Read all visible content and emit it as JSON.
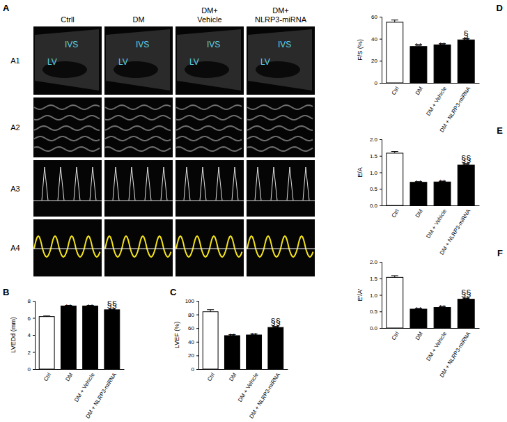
{
  "panel_a": {
    "label": "A",
    "columns": [
      [
        "Ctrll"
      ],
      [
        "DM"
      ],
      [
        "DM+",
        "Vehicle"
      ],
      [
        "DM+",
        "NLRP3-miRNA"
      ]
    ],
    "rows": [
      "A1",
      "A2",
      "A3",
      "A4"
    ],
    "structures": [
      "IVS",
      "LV"
    ]
  },
  "chart_data": [
    {
      "type": "bar",
      "panel": "B",
      "y_label": "LVEDd (mm)",
      "categories": [
        "Ctrl",
        "DM",
        "DM + Vehicle",
        "DM + NLRP3-miRNA"
      ],
      "values": [
        6.15,
        7.4,
        7.4,
        6.95
      ],
      "errors": [
        0.08,
        0.06,
        0.06,
        0.06
      ],
      "colors": [
        "#ffffff",
        "#000000",
        "#000000",
        "#000000"
      ],
      "ylim": [
        0,
        8
      ],
      "yticks": [
        0,
        2,
        4,
        6,
        8
      ],
      "annotations": [
        {
          "index": 1,
          "text": "**"
        },
        {
          "index": 2,
          "text": "**"
        },
        {
          "index": 3,
          "text": "**"
        },
        {
          "index": 3,
          "text": "§§"
        }
      ]
    },
    {
      "type": "bar",
      "panel": "C",
      "y_label": "LVEF (%)",
      "categories": [
        "Ctrl",
        "DM",
        "DM + Vehicle",
        "DM + NLRP3-miRNA"
      ],
      "values": [
        84,
        49,
        50,
        61
      ],
      "errors": [
        3,
        1.5,
        1.5,
        1.5
      ],
      "colors": [
        "#ffffff",
        "#000000",
        "#000000",
        "#000000"
      ],
      "ylim": [
        0,
        100
      ],
      "yticks": [
        0,
        20,
        40,
        60,
        80,
        100
      ],
      "annotations": [
        {
          "index": 1,
          "text": "**"
        },
        {
          "index": 2,
          "text": "**"
        },
        {
          "index": 3,
          "text": "**"
        },
        {
          "index": 3,
          "text": "§§"
        }
      ]
    },
    {
      "type": "bar",
      "panel": "D",
      "y_label": "F/S (%)",
      "categories": [
        "Ctrl",
        "DM",
        "DM + Vehicle",
        "DM + NLRP3-miRNA"
      ],
      "values": [
        55,
        33,
        34.5,
        39
      ],
      "errors": [
        2,
        1.5,
        1,
        1
      ],
      "colors": [
        "#ffffff",
        "#000000",
        "#000000",
        "#000000"
      ],
      "ylim": [
        0,
        60
      ],
      "yticks": [
        0,
        20,
        40,
        60
      ],
      "annotations": [
        {
          "index": 1,
          "text": "**"
        },
        {
          "index": 2,
          "text": "**"
        },
        {
          "index": 3,
          "text": "**"
        },
        {
          "index": 3,
          "text": "§"
        }
      ]
    },
    {
      "type": "bar",
      "panel": "E",
      "y_label": "E/A",
      "categories": [
        "Ctrl",
        "DM",
        "DM + Vehicle",
        "DM + NLRP3-miRNA"
      ],
      "values": [
        1.58,
        0.7,
        0.71,
        1.22
      ],
      "errors": [
        0.05,
        0.02,
        0.02,
        0.04
      ],
      "colors": [
        "#ffffff",
        "#000000",
        "#000000",
        "#000000"
      ],
      "ylim": [
        0,
        2
      ],
      "yticks": [
        {
          "value": 0,
          "label": "0.0"
        },
        0.5,
        {
          "value": 1,
          "label": "1.0"
        },
        1.5,
        {
          "value": 2,
          "label": "2.0"
        }
      ],
      "annotations": [
        {
          "index": 1,
          "text": "**"
        },
        {
          "index": 2,
          "text": "**"
        },
        {
          "index": 3,
          "text": "**"
        },
        {
          "index": 3,
          "text": "§§"
        }
      ]
    },
    {
      "type": "bar",
      "panel": "F",
      "y_label": "E'/A'",
      "categories": [
        "Ctrl",
        "DM",
        "DM + Vehicle",
        "DM + NLRP3-miRNA"
      ],
      "values": [
        1.53,
        0.57,
        0.62,
        0.87
      ],
      "errors": [
        0.05,
        0.02,
        0.03,
        0.03
      ],
      "colors": [
        "#ffffff",
        "#000000",
        "#000000",
        "#000000"
      ],
      "ylim": [
        0,
        2
      ],
      "yticks": [
        {
          "value": 0,
          "label": "0.0"
        },
        0.5,
        {
          "value": 1,
          "label": "1.0"
        },
        1.5,
        {
          "value": 2,
          "label": "2.0"
        }
      ],
      "annotations": [
        {
          "index": 1,
          "text": "**"
        },
        {
          "index": 2,
          "text": "**"
        },
        {
          "index": 3,
          "text": "**"
        },
        {
          "index": 3,
          "text": "§§"
        }
      ]
    }
  ]
}
